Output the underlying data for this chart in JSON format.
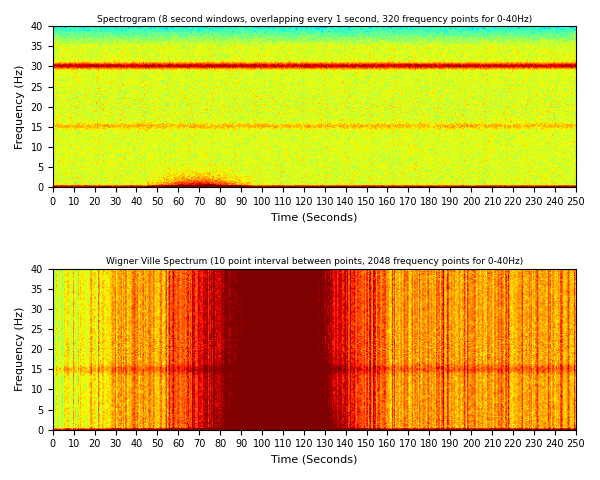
{
  "title1": "Spectrogram (8 second windows, overlapping every 1 second, 320 frequency points for 0-40Hz)",
  "title2": "Wigner Ville Spectrum (10 point interval between points, 2048 frequency points for 0-40Hz)",
  "xlabel": "Time (Seconds)",
  "ylabel": "Frequency (Hz)",
  "xlim": [
    0,
    250
  ],
  "ylim": [
    0,
    40
  ],
  "xticks": [
    0,
    10,
    20,
    30,
    40,
    50,
    60,
    70,
    80,
    90,
    100,
    110,
    120,
    130,
    140,
    150,
    160,
    170,
    180,
    190,
    200,
    210,
    220,
    230,
    240,
    250
  ],
  "yticks": [
    0,
    5,
    10,
    15,
    20,
    25,
    30,
    35,
    40
  ],
  "figsize": [
    6.0,
    4.8
  ],
  "dpi": 100,
  "seed": 42
}
